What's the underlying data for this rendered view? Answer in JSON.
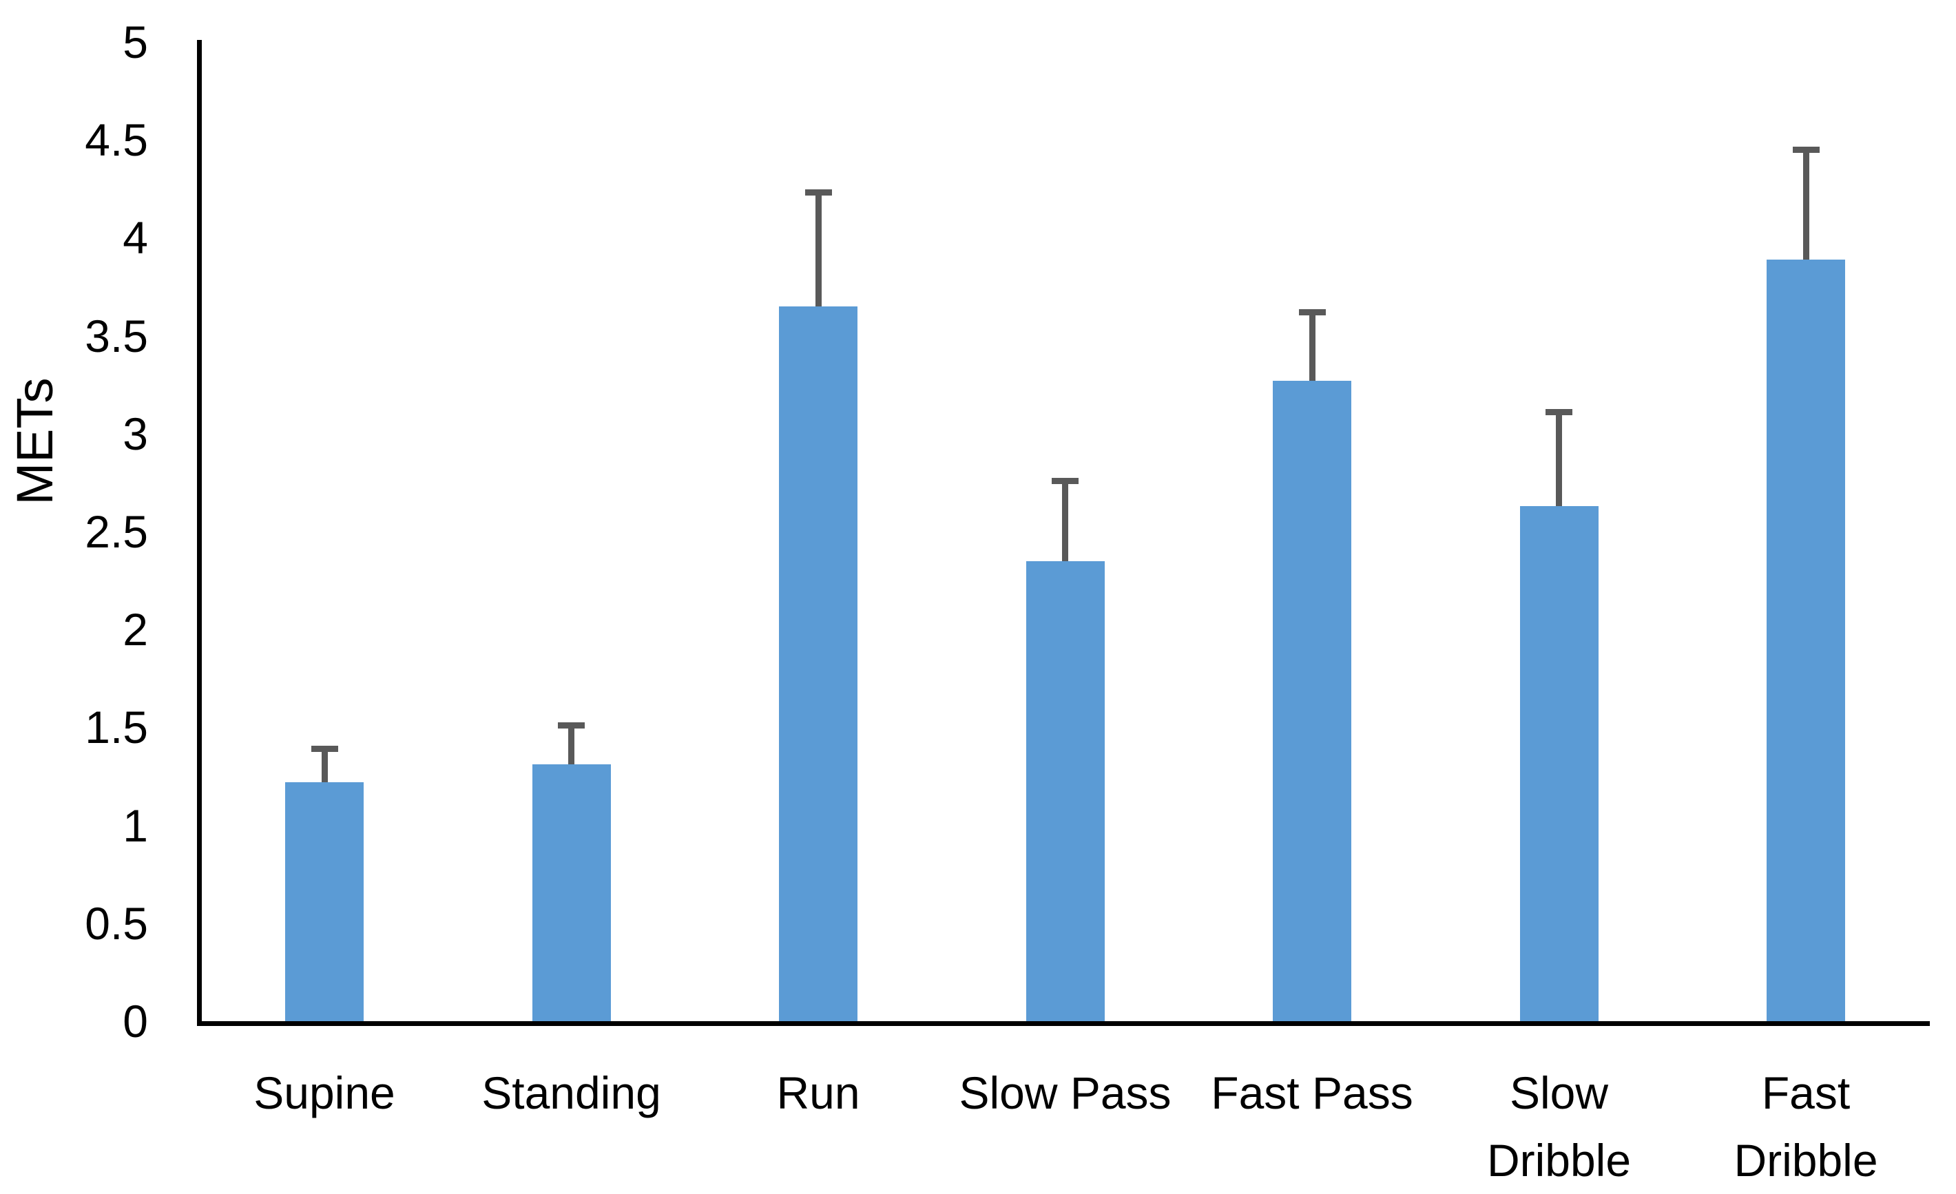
{
  "chart_data": {
    "type": "bar",
    "title": "",
    "xlabel": "",
    "ylabel": "METs",
    "categories": [
      "Supine",
      "Standing",
      "Run",
      "Slow Pass",
      "Fast Pass",
      "Slow Dribble",
      "Fast Dribble"
    ],
    "category_lines": [
      [
        "Supine"
      ],
      [
        "Standing"
      ],
      [
        "Run"
      ],
      [
        "Slow Pass"
      ],
      [
        "Fast Pass"
      ],
      [
        "Slow",
        "Dribble"
      ],
      [
        "Fast",
        "Dribble"
      ]
    ],
    "values": [
      1.22,
      1.31,
      3.65,
      2.35,
      3.27,
      2.63,
      3.89
    ],
    "error_bars_plus": [
      0.17,
      0.2,
      0.58,
      0.41,
      0.35,
      0.48,
      0.56
    ],
    "yticks": [
      0,
      0.5,
      1,
      1.5,
      2,
      2.5,
      3,
      3.5,
      4,
      4.5,
      5
    ],
    "ytick_labels": [
      "0",
      "0.5",
      "1",
      "1.5",
      "2",
      "2.5",
      "3",
      "3.5",
      "4",
      "4.5",
      "5"
    ],
    "ylim": [
      0,
      5
    ],
    "grid": false,
    "legend": false,
    "colors": {
      "bar": "#5B9BD5",
      "error_bar": "#595959",
      "axis": "#000000",
      "text": "#000000",
      "background": "#FFFFFF"
    }
  }
}
